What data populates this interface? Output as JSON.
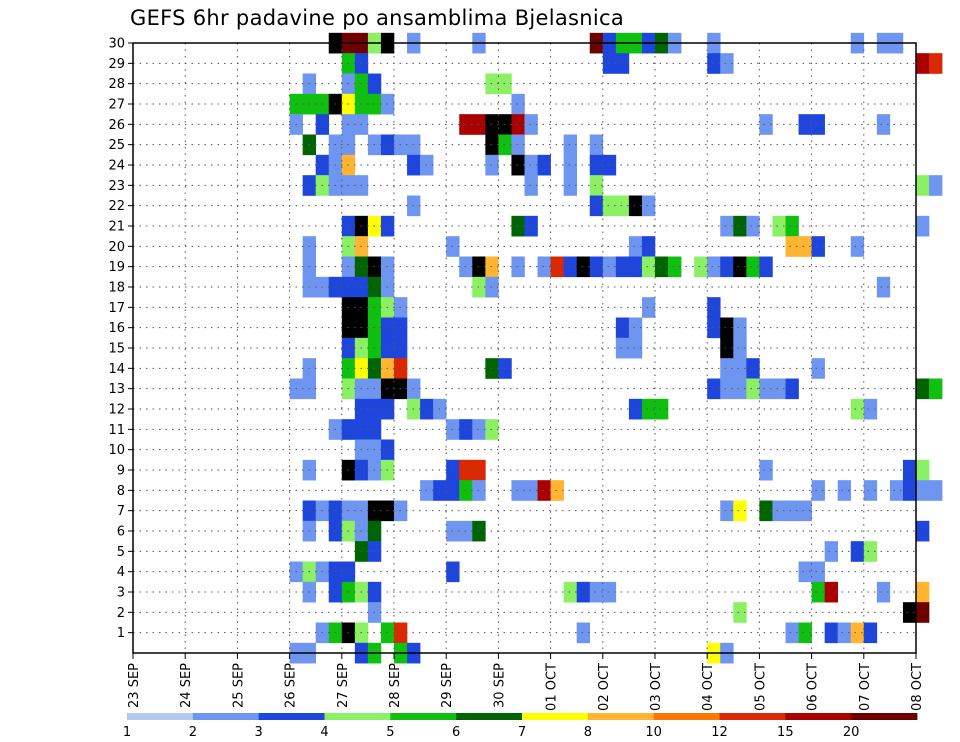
{
  "title": "GEFS 6hr padavine po ansamblima Bjelasnica",
  "chart_data": {
    "type": "heatmap",
    "title": "GEFS 6hr padavine po ansamblima Bjelasnica",
    "xlabel": "",
    "ylabel": "",
    "x_tick_labels": [
      "23 SEP",
      "24 SEP",
      "25 SEP",
      "26 SEP",
      "27 SEP",
      "28 SEP",
      "29 SEP",
      "30 SEP",
      "01 OCT",
      "02 OCT",
      "03 OCT",
      "04 OCT",
      "05 OCT",
      "06 OCT",
      "07 OCT",
      "08 OCT"
    ],
    "x_range_days": [
      0,
      15
    ],
    "steps_per_day": 4,
    "y_tick_labels": [
      "1",
      "2",
      "3",
      "4",
      "5",
      "6",
      "7",
      "8",
      "9",
      "10",
      "11",
      "12",
      "13",
      "14",
      "15",
      "16",
      "17",
      "18",
      "19",
      "20",
      "21",
      "22",
      "23",
      "24",
      "25",
      "26",
      "27",
      "28",
      "29",
      "30"
    ],
    "y_range": [
      0,
      30
    ],
    "grid": true,
    "legend": {
      "placement": "bottom",
      "labels": [
        "1",
        "2",
        "3",
        "4",
        "5",
        "6",
        "7",
        "8",
        "10",
        "12",
        "15",
        "20"
      ],
      "colors": [
        "#b4c8f0",
        "#6e96f0",
        "#1e46dc",
        "#8cf064",
        "#10c010",
        "#006400",
        "#ffff00",
        "#ffb432",
        "#ff7800",
        "#dc2800",
        "#aa0000",
        "#6e0000"
      ]
    },
    "cells": [
      [
        3,
        30,
        13
      ],
      [
        4,
        30,
        12
      ],
      [
        5,
        30,
        12
      ],
      [
        6,
        30,
        4
      ],
      [
        7,
        30,
        14
      ],
      [
        9,
        30,
        2
      ],
      [
        14,
        30,
        2
      ],
      [
        23,
        30,
        12
      ],
      [
        24,
        30,
        3
      ],
      [
        25,
        30,
        5
      ],
      [
        26,
        30,
        5
      ],
      [
        27,
        30,
        3
      ],
      [
        28,
        30,
        6
      ],
      [
        29,
        30,
        2
      ],
      [
        32,
        30,
        2
      ],
      [
        43,
        30,
        2
      ],
      [
        45,
        30,
        2
      ],
      [
        46,
        30,
        2
      ],
      [
        4,
        29,
        5
      ],
      [
        5,
        29,
        3
      ],
      [
        24,
        29,
        3
      ],
      [
        25,
        29,
        3
      ],
      [
        32,
        29,
        3
      ],
      [
        33,
        29,
        2
      ],
      [
        48,
        29,
        11
      ],
      [
        49,
        29,
        10
      ],
      [
        1,
        28,
        2
      ],
      [
        4,
        28,
        2
      ],
      [
        5,
        28,
        5
      ],
      [
        6,
        28,
        3
      ],
      [
        15,
        28,
        4
      ],
      [
        16,
        28,
        4
      ],
      [
        0,
        27,
        5
      ],
      [
        1,
        27,
        5
      ],
      [
        2,
        27,
        5
      ],
      [
        3,
        27,
        13
      ],
      [
        4,
        27,
        7
      ],
      [
        5,
        27,
        5
      ],
      [
        6,
        27,
        5
      ],
      [
        7,
        27,
        2
      ],
      [
        17,
        27,
        2
      ],
      [
        0,
        26,
        2
      ],
      [
        2,
        26,
        3
      ],
      [
        4,
        26,
        2
      ],
      [
        5,
        26,
        2
      ],
      [
        13,
        26,
        11
      ],
      [
        14,
        26,
        11
      ],
      [
        15,
        26,
        14
      ],
      [
        16,
        26,
        14
      ],
      [
        17,
        26,
        11
      ],
      [
        18,
        26,
        2
      ],
      [
        36,
        26,
        2
      ],
      [
        39,
        26,
        3
      ],
      [
        40,
        26,
        3
      ],
      [
        45,
        26,
        2
      ],
      [
        1,
        25,
        6
      ],
      [
        3,
        25,
        2
      ],
      [
        4,
        25,
        2
      ],
      [
        6,
        25,
        2
      ],
      [
        7,
        25,
        3
      ],
      [
        8,
        25,
        2
      ],
      [
        9,
        25,
        2
      ],
      [
        15,
        25,
        13
      ],
      [
        16,
        25,
        5
      ],
      [
        17,
        25,
        2
      ],
      [
        21,
        25,
        2
      ],
      [
        23,
        25,
        2
      ],
      [
        2,
        24,
        3
      ],
      [
        3,
        24,
        2
      ],
      [
        4,
        24,
        8
      ],
      [
        9,
        24,
        3
      ],
      [
        10,
        24,
        2
      ],
      [
        15,
        24,
        2
      ],
      [
        17,
        24,
        15
      ],
      [
        18,
        24,
        2
      ],
      [
        19,
        24,
        3
      ],
      [
        21,
        24,
        2
      ],
      [
        23,
        24,
        3
      ],
      [
        24,
        24,
        3
      ],
      [
        1,
        23,
        3
      ],
      [
        2,
        23,
        4
      ],
      [
        3,
        23,
        2
      ],
      [
        4,
        23,
        2
      ],
      [
        5,
        23,
        2
      ],
      [
        18,
        23,
        2
      ],
      [
        21,
        23,
        2
      ],
      [
        23,
        23,
        4
      ],
      [
        48,
        23,
        4
      ],
      [
        49,
        23,
        2
      ],
      [
        9,
        22,
        2
      ],
      [
        23,
        22,
        3
      ],
      [
        24,
        22,
        4
      ],
      [
        25,
        22,
        4
      ],
      [
        26,
        22,
        15
      ],
      [
        27,
        22,
        2
      ],
      [
        4,
        21,
        3
      ],
      [
        5,
        21,
        13
      ],
      [
        6,
        21,
        7
      ],
      [
        7,
        21,
        3
      ],
      [
        17,
        21,
        6
      ],
      [
        18,
        21,
        3
      ],
      [
        33,
        21,
        2
      ],
      [
        34,
        21,
        6
      ],
      [
        35,
        21,
        2
      ],
      [
        37,
        21,
        4
      ],
      [
        38,
        21,
        5
      ],
      [
        48,
        21,
        2
      ],
      [
        1,
        20,
        2
      ],
      [
        4,
        20,
        4
      ],
      [
        5,
        20,
        8
      ],
      [
        12,
        20,
        2
      ],
      [
        26,
        20,
        2
      ],
      [
        27,
        20,
        3
      ],
      [
        38,
        20,
        8
      ],
      [
        39,
        20,
        8
      ],
      [
        40,
        20,
        3
      ],
      [
        43,
        20,
        2
      ],
      [
        1,
        19,
        2
      ],
      [
        4,
        19,
        2
      ],
      [
        5,
        19,
        6
      ],
      [
        6,
        19,
        13
      ],
      [
        7,
        19,
        2
      ],
      [
        13,
        19,
        2
      ],
      [
        14,
        19,
        15
      ],
      [
        15,
        19,
        8
      ],
      [
        17,
        19,
        2
      ],
      [
        19,
        19,
        2
      ],
      [
        20,
        19,
        10
      ],
      [
        21,
        19,
        3
      ],
      [
        22,
        19,
        13
      ],
      [
        23,
        19,
        3
      ],
      [
        24,
        19,
        2
      ],
      [
        25,
        19,
        3
      ],
      [
        26,
        19,
        3
      ],
      [
        27,
        19,
        4
      ],
      [
        28,
        19,
        6
      ],
      [
        29,
        19,
        5
      ],
      [
        31,
        19,
        4
      ],
      [
        32,
        19,
        2
      ],
      [
        33,
        19,
        3
      ],
      [
        34,
        19,
        15
      ],
      [
        35,
        19,
        5
      ],
      [
        36,
        19,
        3
      ],
      [
        1,
        18,
        2
      ],
      [
        2,
        18,
        2
      ],
      [
        3,
        18,
        3
      ],
      [
        4,
        18,
        3
      ],
      [
        5,
        18,
        3
      ],
      [
        6,
        18,
        6
      ],
      [
        7,
        18,
        2
      ],
      [
        14,
        18,
        4
      ],
      [
        15,
        18,
        2
      ],
      [
        45,
        18,
        2
      ],
      [
        4,
        17,
        13
      ],
      [
        5,
        17,
        13
      ],
      [
        6,
        17,
        5
      ],
      [
        7,
        17,
        4
      ],
      [
        8,
        17,
        2
      ],
      [
        27,
        17,
        2
      ],
      [
        32,
        17,
        3
      ],
      [
        4,
        16,
        13
      ],
      [
        5,
        16,
        13
      ],
      [
        6,
        16,
        5
      ],
      [
        7,
        16,
        3
      ],
      [
        8,
        16,
        3
      ],
      [
        25,
        16,
        3
      ],
      [
        26,
        16,
        2
      ],
      [
        32,
        16,
        3
      ],
      [
        33,
        16,
        15
      ],
      [
        34,
        16,
        2
      ],
      [
        4,
        15,
        3
      ],
      [
        5,
        15,
        4
      ],
      [
        6,
        15,
        5
      ],
      [
        7,
        15,
        3
      ],
      [
        8,
        15,
        3
      ],
      [
        25,
        15,
        2
      ],
      [
        26,
        15,
        2
      ],
      [
        33,
        15,
        14
      ],
      [
        34,
        15,
        2
      ],
      [
        1,
        14,
        2
      ],
      [
        4,
        14,
        5
      ],
      [
        5,
        14,
        7
      ],
      [
        6,
        14,
        6
      ],
      [
        7,
        14,
        8
      ],
      [
        8,
        14,
        10
      ],
      [
        15,
        14,
        6
      ],
      [
        16,
        14,
        3
      ],
      [
        33,
        14,
        2
      ],
      [
        34,
        14,
        2
      ],
      [
        35,
        14,
        3
      ],
      [
        40,
        14,
        2
      ],
      [
        0,
        13,
        2
      ],
      [
        1,
        13,
        2
      ],
      [
        4,
        13,
        4
      ],
      [
        5,
        13,
        2
      ],
      [
        6,
        13,
        2
      ],
      [
        7,
        13,
        15
      ],
      [
        8,
        13,
        15
      ],
      [
        9,
        13,
        2
      ],
      [
        32,
        13,
        3
      ],
      [
        33,
        13,
        2
      ],
      [
        34,
        13,
        2
      ],
      [
        35,
        13,
        4
      ],
      [
        36,
        13,
        2
      ],
      [
        37,
        13,
        2
      ],
      [
        38,
        13,
        3
      ],
      [
        48,
        13,
        6
      ],
      [
        49,
        13,
        5
      ],
      [
        5,
        12,
        3
      ],
      [
        6,
        12,
        3
      ],
      [
        7,
        12,
        3
      ],
      [
        9,
        12,
        4
      ],
      [
        10,
        12,
        3
      ],
      [
        11,
        12,
        2
      ],
      [
        26,
        12,
        3
      ],
      [
        27,
        12,
        5
      ],
      [
        28,
        12,
        5
      ],
      [
        43,
        12,
        4
      ],
      [
        44,
        12,
        2
      ],
      [
        3,
        11,
        2
      ],
      [
        4,
        11,
        3
      ],
      [
        5,
        11,
        3
      ],
      [
        6,
        11,
        3
      ],
      [
        12,
        11,
        2
      ],
      [
        13,
        11,
        3
      ],
      [
        14,
        11,
        2
      ],
      [
        15,
        11,
        4
      ],
      [
        5,
        10,
        2
      ],
      [
        6,
        10,
        2
      ],
      [
        7,
        10,
        3
      ],
      [
        1,
        9,
        2
      ],
      [
        4,
        9,
        14
      ],
      [
        5,
        9,
        3
      ],
      [
        6,
        9,
        2
      ],
      [
        7,
        9,
        4
      ],
      [
        12,
        9,
        3
      ],
      [
        13,
        9,
        10
      ],
      [
        14,
        9,
        10
      ],
      [
        36,
        9,
        2
      ],
      [
        47,
        9,
        3
      ],
      [
        48,
        9,
        4
      ],
      [
        10,
        8,
        2
      ],
      [
        11,
        8,
        3
      ],
      [
        12,
        8,
        3
      ],
      [
        13,
        8,
        5
      ],
      [
        14,
        8,
        2
      ],
      [
        17,
        8,
        2
      ],
      [
        18,
        8,
        2
      ],
      [
        19,
        8,
        11
      ],
      [
        20,
        8,
        8
      ],
      [
        40,
        8,
        2
      ],
      [
        42,
        8,
        2
      ],
      [
        44,
        8,
        2
      ],
      [
        46,
        8,
        2
      ],
      [
        47,
        8,
        3
      ],
      [
        48,
        8,
        2
      ],
      [
        49,
        8,
        2
      ],
      [
        1,
        7,
        3
      ],
      [
        2,
        7,
        2
      ],
      [
        3,
        7,
        3
      ],
      [
        4,
        7,
        2
      ],
      [
        5,
        7,
        2
      ],
      [
        6,
        7,
        15
      ],
      [
        7,
        7,
        13
      ],
      [
        8,
        7,
        2
      ],
      [
        33,
        7,
        2
      ],
      [
        34,
        7,
        7
      ],
      [
        36,
        7,
        6
      ],
      [
        37,
        7,
        2
      ],
      [
        38,
        7,
        2
      ],
      [
        39,
        7,
        2
      ],
      [
        1,
        6,
        2
      ],
      [
        3,
        6,
        3
      ],
      [
        4,
        6,
        4
      ],
      [
        5,
        6,
        2
      ],
      [
        6,
        6,
        6
      ],
      [
        12,
        6,
        2
      ],
      [
        13,
        6,
        2
      ],
      [
        14,
        6,
        6
      ],
      [
        48,
        6,
        3
      ],
      [
        5,
        5,
        6
      ],
      [
        6,
        5,
        3
      ],
      [
        41,
        5,
        2
      ],
      [
        43,
        5,
        3
      ],
      [
        44,
        5,
        4
      ],
      [
        0,
        4,
        2
      ],
      [
        1,
        4,
        4
      ],
      [
        2,
        4,
        2
      ],
      [
        3,
        4,
        3
      ],
      [
        4,
        4,
        3
      ],
      [
        12,
        4,
        3
      ],
      [
        39,
        4,
        2
      ],
      [
        40,
        4,
        2
      ],
      [
        1,
        3,
        2
      ],
      [
        3,
        3,
        3
      ],
      [
        4,
        3,
        5
      ],
      [
        5,
        3,
        4
      ],
      [
        6,
        3,
        3
      ],
      [
        21,
        3,
        4
      ],
      [
        22,
        3,
        3
      ],
      [
        23,
        3,
        2
      ],
      [
        24,
        3,
        2
      ],
      [
        40,
        3,
        5
      ],
      [
        41,
        3,
        11
      ],
      [
        45,
        3,
        2
      ],
      [
        48,
        3,
        8
      ],
      [
        6,
        2,
        2
      ],
      [
        34,
        2,
        4
      ],
      [
        47,
        2,
        13
      ],
      [
        48,
        2,
        12
      ],
      [
        2,
        1,
        2
      ],
      [
        3,
        1,
        5
      ],
      [
        4,
        1,
        15
      ],
      [
        5,
        1,
        4
      ],
      [
        7,
        1,
        5
      ],
      [
        8,
        1,
        10
      ],
      [
        22,
        1,
        2
      ],
      [
        38,
        1,
        2
      ],
      [
        39,
        1,
        5
      ],
      [
        41,
        1,
        3
      ],
      [
        42,
        1,
        2
      ],
      [
        43,
        1,
        8
      ],
      [
        44,
        1,
        3
      ],
      [
        0,
        0,
        2
      ],
      [
        1,
        0,
        2
      ],
      [
        5,
        0,
        3
      ],
      [
        6,
        0,
        5
      ],
      [
        8,
        0,
        5
      ],
      [
        9,
        0,
        3
      ],
      [
        32,
        0,
        7
      ],
      [
        33,
        0,
        2
      ]
    ]
  }
}
